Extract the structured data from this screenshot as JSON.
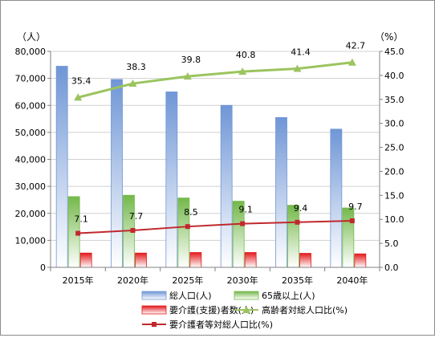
{
  "chart_data": {
    "type": "bar",
    "categories": [
      "2015年",
      "2020年",
      "2025年",
      "2030年",
      "2035年",
      "2040年"
    ],
    "y_left": {
      "unit": "（人）",
      "ylim": [
        0,
        80000
      ],
      "ticks": [
        "0",
        "10,000",
        "20,000",
        "30,000",
        "40,000",
        "50,000",
        "60,000",
        "70,000",
        "80,000"
      ]
    },
    "y_right": {
      "unit": "（%）",
      "ylim": [
        0,
        45
      ],
      "ticks": [
        "0.0",
        "5.0",
        "10.0",
        "15.0",
        "20.0",
        "25.0",
        "30.0",
        "35.0",
        "40.0",
        "45.0"
      ]
    },
    "bar_series": [
      {
        "name": "総人口(人)",
        "color": "#6f96d6",
        "values": [
          74500,
          69600,
          65000,
          60000,
          55500,
          51200
        ]
      },
      {
        "name": "65歳以上(人)",
        "color": "#74b84a",
        "values": [
          26200,
          26700,
          25700,
          24500,
          23000,
          22000
        ]
      },
      {
        "name": "要介護(支援)者数(人)",
        "color": "#e31a1c",
        "values": [
          5300,
          5300,
          5500,
          5500,
          5200,
          5000
        ]
      }
    ],
    "line_series": [
      {
        "name": "高齢者対総人口比(%)",
        "color": "#9bc45e",
        "marker": "triangle",
        "values": [
          35.4,
          38.3,
          39.8,
          40.8,
          41.4,
          42.7
        ],
        "labels": [
          "35.4",
          "38.3",
          "39.8",
          "40.8",
          "41.4",
          "42.7"
        ]
      },
      {
        "name": "要介護者等対総人口比(%)",
        "color": "#c0282d",
        "marker": "square",
        "values": [
          7.1,
          7.7,
          8.5,
          9.1,
          9.4,
          9.7
        ],
        "labels": [
          "7.1",
          "7.7",
          "8.5",
          "9.1",
          "9.4",
          "9.7"
        ]
      }
    ],
    "grid": true,
    "legend": "bottom"
  }
}
